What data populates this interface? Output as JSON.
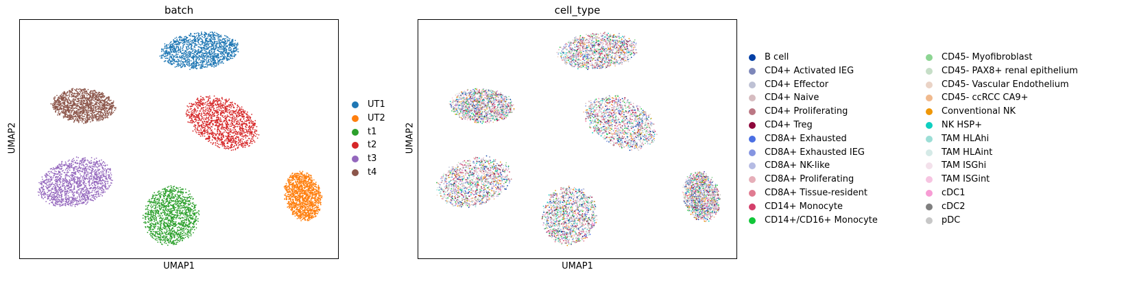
{
  "chart_data": [
    {
      "type": "scatter",
      "title": "batch",
      "xlabel": "UMAP1",
      "ylabel": "UMAP2",
      "grid": false,
      "legend_placement": "right",
      "series": [
        {
          "name": "UT1",
          "color": "#1f77b4",
          "clusters": [
            {
              "cx": 0.565,
              "cy": 0.13,
              "rx": 0.13,
              "ry": 0.08,
              "rot": -5
            }
          ]
        },
        {
          "name": "UT2",
          "color": "#ff7f0e",
          "clusters": [
            {
              "cx": 0.89,
              "cy": 0.74,
              "rx": 0.06,
              "ry": 0.11,
              "rot": -15
            }
          ]
        },
        {
          "name": "t1",
          "color": "#2ca02c",
          "clusters": [
            {
              "cx": 0.475,
              "cy": 0.82,
              "rx": 0.09,
              "ry": 0.13,
              "rot": 10
            }
          ]
        },
        {
          "name": "t2",
          "color": "#d62728",
          "clusters": [
            {
              "cx": 0.635,
              "cy": 0.43,
              "rx": 0.125,
              "ry": 0.105,
              "rot": 25
            }
          ]
        },
        {
          "name": "t3",
          "color": "#9467bd",
          "clusters": [
            {
              "cx": 0.175,
              "cy": 0.68,
              "rx": 0.125,
              "ry": 0.105,
              "rot": -15
            }
          ]
        },
        {
          "name": "t4",
          "color": "#8c564b",
          "clusters": [
            {
              "cx": 0.2,
              "cy": 0.36,
              "rx": 0.105,
              "ry": 0.075,
              "rot": 3
            }
          ]
        }
      ]
    },
    {
      "type": "scatter",
      "title": "cell_type",
      "xlabel": "UMAP1",
      "ylabel": "UMAP2",
      "grid": false,
      "legend_placement": "right",
      "clusters": [
        {
          "cx": 0.565,
          "cy": 0.13,
          "rx": 0.13,
          "ry": 0.08,
          "rot": -5
        },
        {
          "cx": 0.89,
          "cy": 0.74,
          "rx": 0.06,
          "ry": 0.11,
          "rot": -15
        },
        {
          "cx": 0.475,
          "cy": 0.82,
          "rx": 0.09,
          "ry": 0.13,
          "rot": 10
        },
        {
          "cx": 0.635,
          "cy": 0.43,
          "rx": 0.125,
          "ry": 0.105,
          "rot": 25
        },
        {
          "cx": 0.175,
          "cy": 0.68,
          "rx": 0.125,
          "ry": 0.105,
          "rot": -15
        },
        {
          "cx": 0.2,
          "cy": 0.36,
          "rx": 0.105,
          "ry": 0.075,
          "rot": 3
        }
      ],
      "series": [
        {
          "name": "B cell",
          "color": "#023fa5"
        },
        {
          "name": "CD4+ Activated IEG",
          "color": "#7d87b9"
        },
        {
          "name": "CD4+ Effector",
          "color": "#bec1d4"
        },
        {
          "name": "CD4+ Naive",
          "color": "#d6bcc0"
        },
        {
          "name": "CD4+ Proliferating",
          "color": "#bb7784"
        },
        {
          "name": "CD4+ Treg",
          "color": "#8e063b"
        },
        {
          "name": "CD8A+ Exhausted",
          "color": "#4a6fe3"
        },
        {
          "name": "CD8A+ Exhausted IEG",
          "color": "#8595e1"
        },
        {
          "name": "CD8A+ NK-like",
          "color": "#b5bbe3"
        },
        {
          "name": "CD8A+ Proliferating",
          "color": "#e6afb9"
        },
        {
          "name": "CD8A+ Tissue-resident",
          "color": "#e07b91"
        },
        {
          "name": "CD14+ Monocyte",
          "color": "#d33f6a"
        },
        {
          "name": "CD14+/CD16+ Monocyte",
          "color": "#11c638"
        },
        {
          "name": "CD45- Myofibroblast",
          "color": "#8dd593"
        },
        {
          "name": "CD45- PAX8+ renal epithelium",
          "color": "#c6dec7"
        },
        {
          "name": "CD45- Vascular Endothelium",
          "color": "#ead3c6"
        },
        {
          "name": "CD45- ccRCC CA9+",
          "color": "#f0b98d"
        },
        {
          "name": "Conventional NK",
          "color": "#ef9708"
        },
        {
          "name": "NK HSP+",
          "color": "#0fcfc0"
        },
        {
          "name": "TAM HLAhi",
          "color": "#9cded6"
        },
        {
          "name": "TAM HLAint",
          "color": "#d5eae7"
        },
        {
          "name": "TAM ISGhi",
          "color": "#f3e1eb"
        },
        {
          "name": "TAM ISGint",
          "color": "#f6c4e1"
        },
        {
          "name": "cDC1",
          "color": "#f79cd4"
        },
        {
          "name": "cDC2",
          "color": "#7f7f7f"
        },
        {
          "name": "pDC",
          "color": "#c7c7c7"
        }
      ]
    }
  ]
}
